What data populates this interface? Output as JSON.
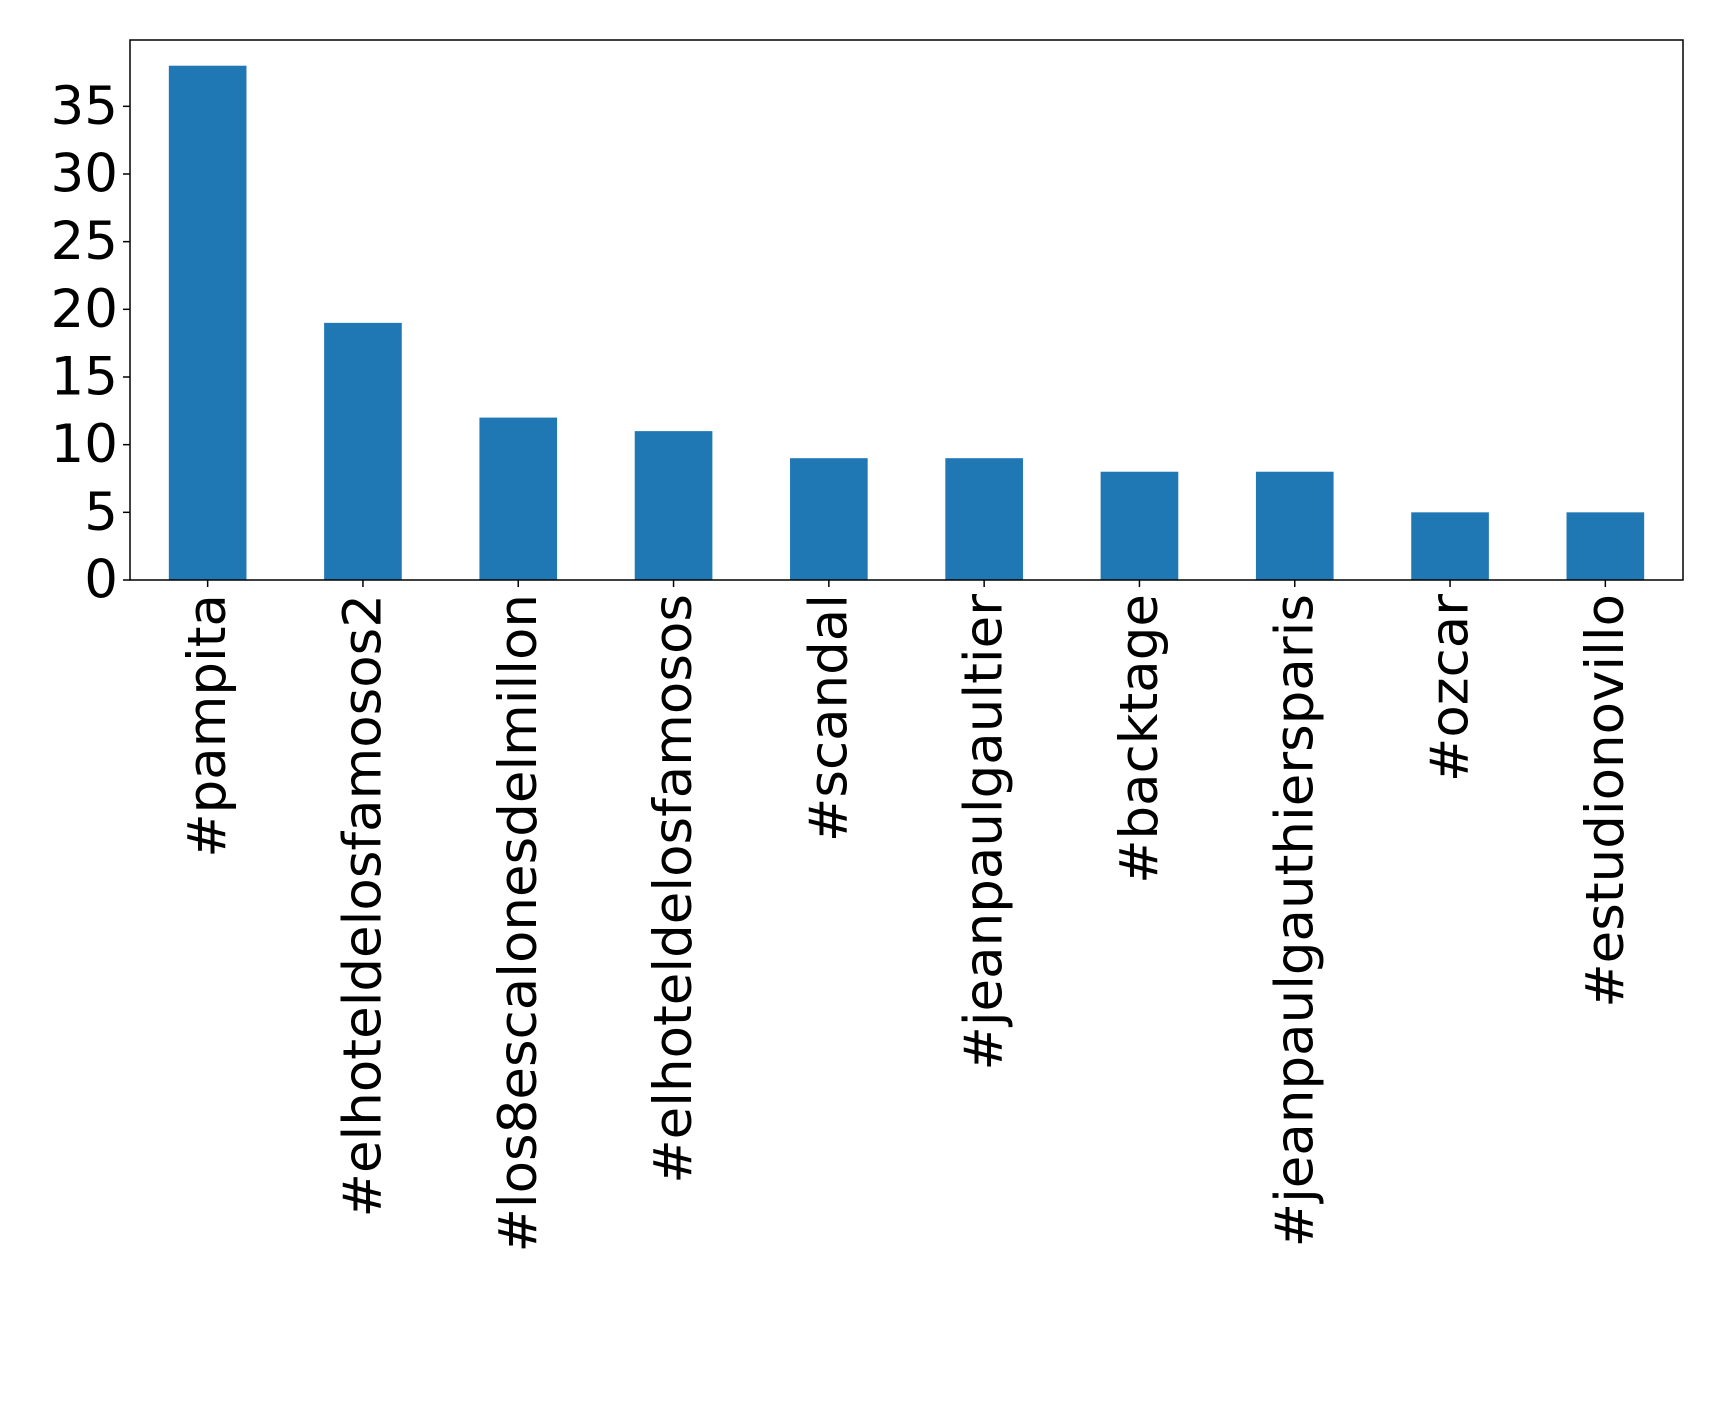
{
  "chart_data": {
    "type": "bar",
    "title": "",
    "xlabel": "",
    "ylabel": "",
    "categories": [
      "#pampita",
      "#elhoteldelosfamosos2",
      "#los8escalonesdelmillon",
      "#elhoteldelosfamosos",
      "#scandal",
      "#jeanpaulgaultier",
      "#backtage",
      "#jeanpaulgauthiersparis",
      "#ozcar",
      "#estudionovillo"
    ],
    "values": [
      38,
      19,
      12,
      11,
      9,
      9,
      8,
      8,
      5,
      5
    ],
    "yticks": [
      "0",
      "5",
      "10",
      "15",
      "20",
      "25",
      "30",
      "35"
    ],
    "ylim": [
      0,
      39.9
    ],
    "grid": false,
    "legend": "none",
    "colors": {
      "bar": "#1f77b4",
      "axis": "#000000",
      "background": "#ffffff"
    }
  }
}
